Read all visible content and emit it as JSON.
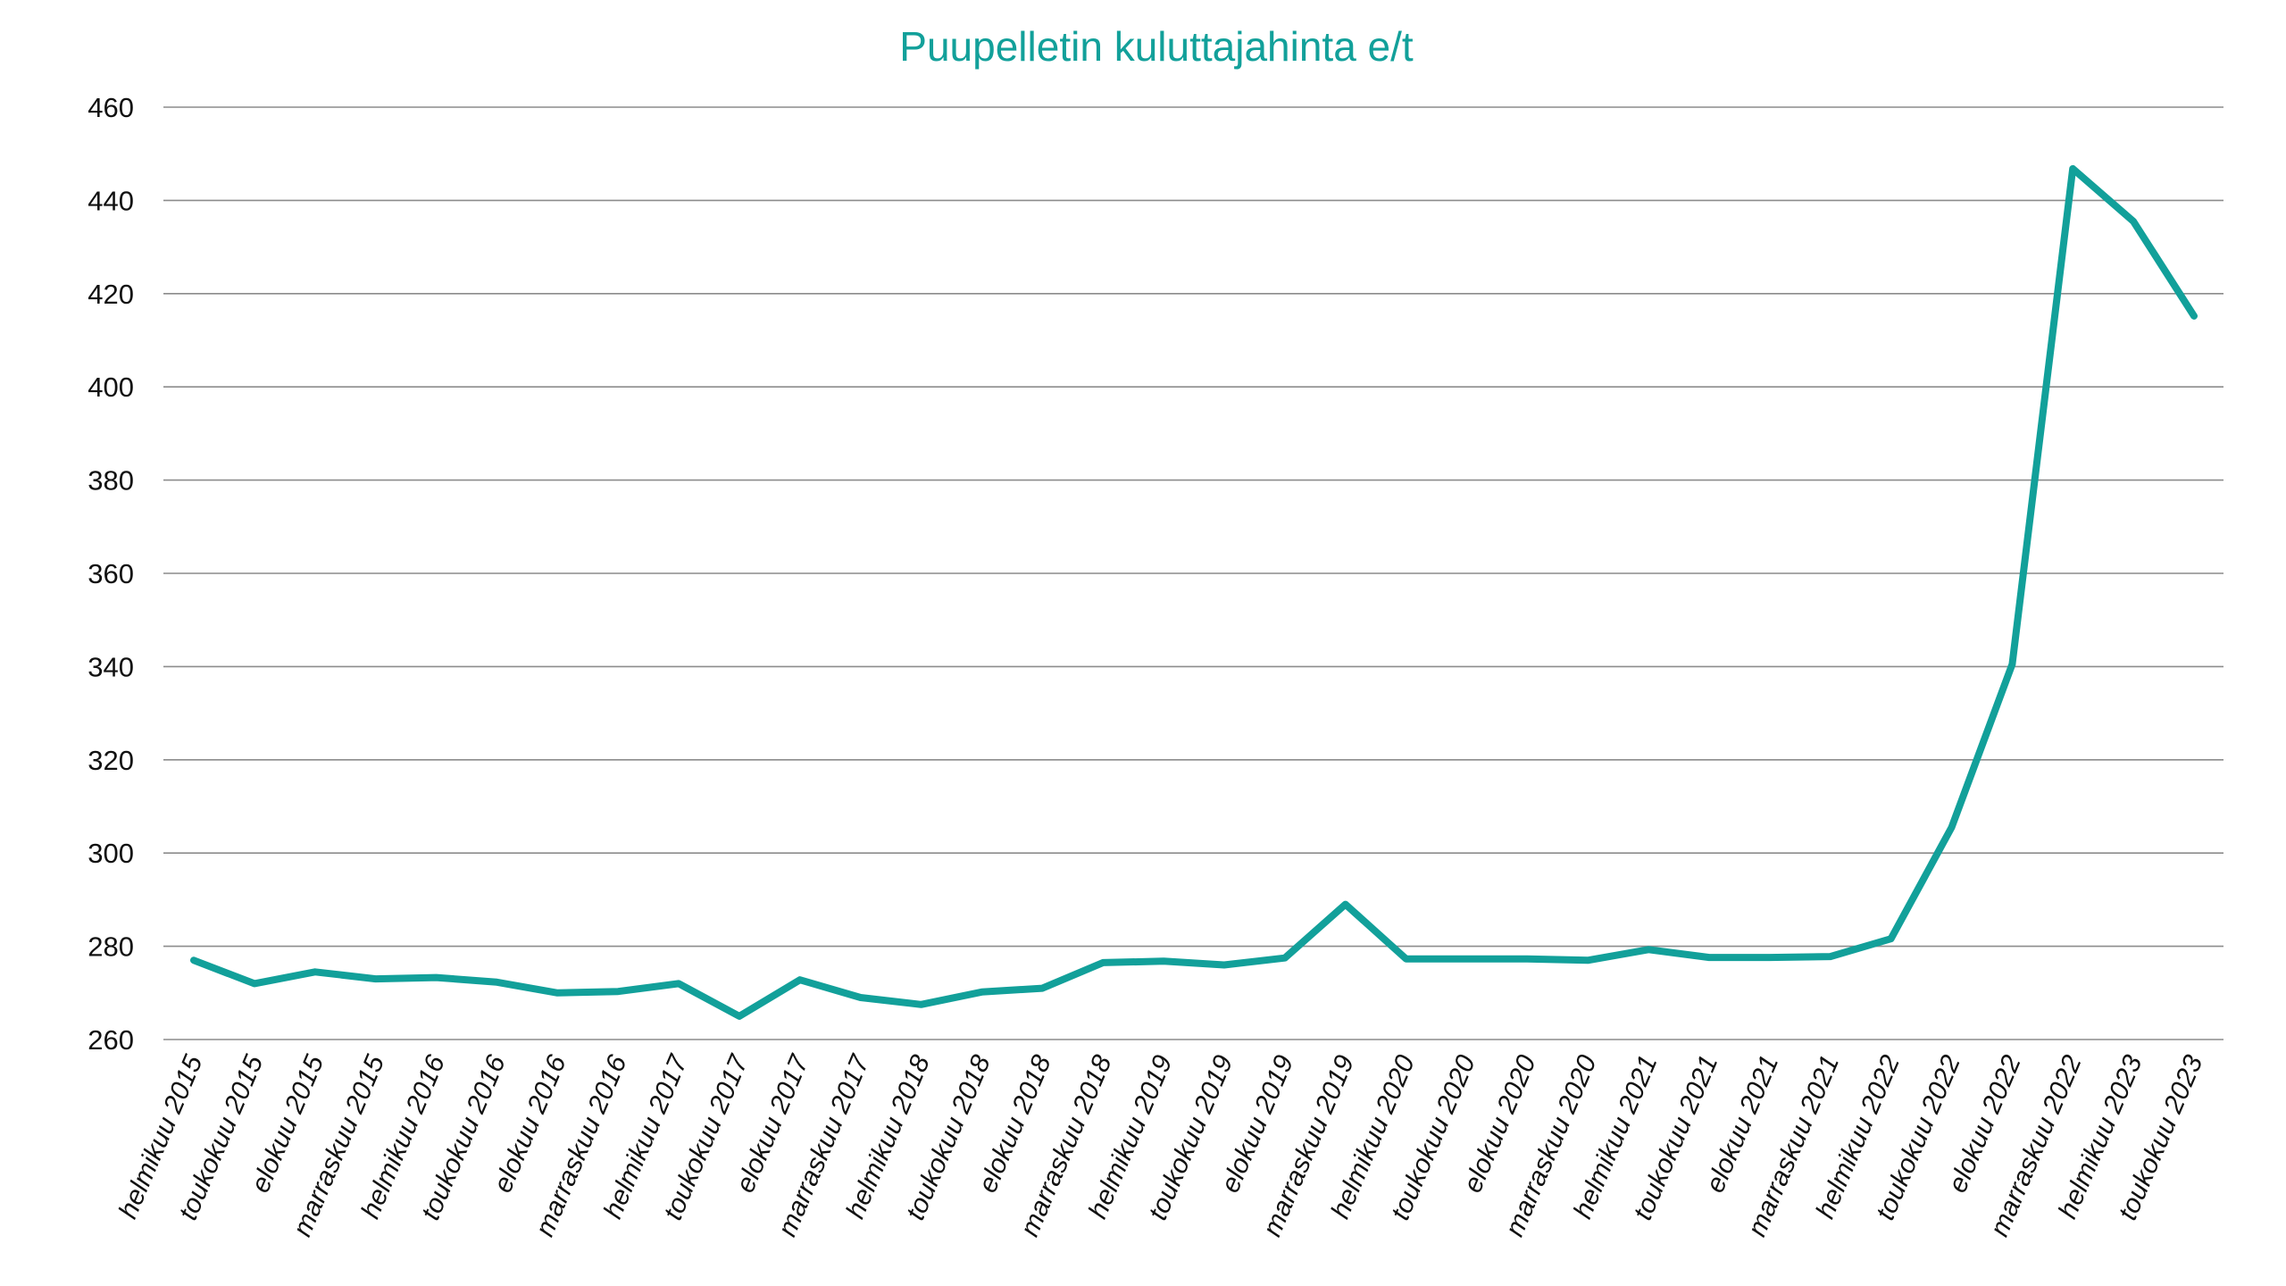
{
  "chart_data": {
    "type": "line",
    "title": "Puupelletin kuluttajahinta e/t",
    "xlabel": "",
    "ylabel": "",
    "ylim": [
      260,
      460
    ],
    "yticks": [
      260,
      280,
      300,
      320,
      340,
      360,
      380,
      400,
      420,
      440,
      460
    ],
    "grid": true,
    "legend": "none",
    "colors": {
      "series": "#12A09A",
      "title": "#12A09A",
      "grid": "#8c8c8c",
      "text": "#111111"
    },
    "categories": [
      "helmikuu 2015",
      "toukokuu 2015",
      "elokuu 2015",
      "marraskuu 2015",
      "helmikuu 2016",
      "toukokuu 2016",
      "elokuu 2016",
      "marraskuu 2016",
      "helmikuu 2017",
      "toukokuu 2017",
      "elokuu 2017",
      "marraskuu 2017",
      "helmikuu 2018",
      "toukokuu 2018",
      "elokuu 2018",
      "marraskuu 2018",
      "helmikuu 2019",
      "toukokuu 2019",
      "elokuu 2019",
      "marraskuu 2019",
      "helmikuu 2020",
      "toukokuu 2020",
      "elokuu 2020",
      "marraskuu 2020",
      "helmikuu 2021",
      "toukokuu 2021",
      "elokuu 2021",
      "marraskuu 2021",
      "helmikuu 2022",
      "toukokuu 2022",
      "elokuu 2022",
      "marraskuu 2022",
      "helmikuu 2023",
      "toukokuu 2023"
    ],
    "series": [
      {
        "values": [
          277,
          272,
          274.5,
          273,
          273.3,
          272.3,
          270,
          270.3,
          272,
          265,
          272.8,
          269,
          267.5,
          270.2,
          271,
          276.5,
          276.8,
          276,
          277.5,
          289,
          277.3,
          277.3,
          277.3,
          277,
          279.3,
          277.6,
          277.6,
          277.8,
          281.6,
          305.5,
          340.5,
          446.8,
          435.5,
          415.2
        ]
      }
    ]
  }
}
